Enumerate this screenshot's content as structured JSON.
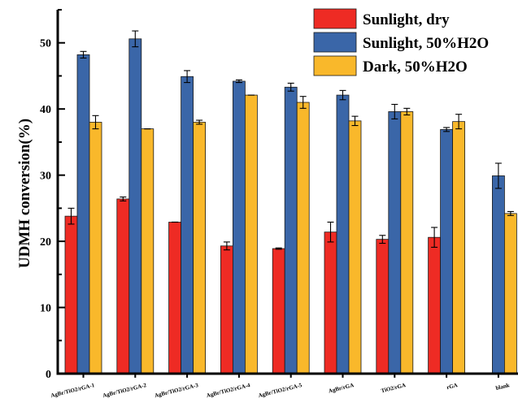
{
  "chart_data": {
    "type": "bar",
    "title": "",
    "xlabel": "",
    "ylabel": "UDMH conversion(%)",
    "ylim": [
      0,
      55
    ],
    "yticks": [
      0,
      10,
      20,
      30,
      40,
      50
    ],
    "grid": false,
    "legend_position": "top-right",
    "categories": [
      "AgBr/TiO2/rGA-1",
      "AgBr/TiO2/rGA-2",
      "AgBr/TiO2/rGA-3",
      "AgBr/TiO2/rGA-4",
      "AgBr/TiO2/rGA-5",
      "AgBr/rGA",
      "TiO2/rGA",
      "rGA",
      "blank"
    ],
    "series": [
      {
        "name": "Sunlight, dry",
        "color": "#ee2b24",
        "values": [
          23.8,
          26.4,
          22.9,
          19.3,
          18.9,
          21.4,
          20.3,
          20.6,
          null
        ],
        "errors": [
          1.2,
          0.3,
          0.0,
          0.6,
          0.1,
          1.5,
          0.6,
          1.5,
          null
        ]
      },
      {
        "name": "Sunlight, 50%H2O",
        "color": "#3a66a8",
        "values": [
          48.2,
          50.6,
          44.9,
          44.2,
          43.3,
          42.1,
          39.6,
          36.9,
          29.9
        ],
        "errors": [
          0.5,
          1.2,
          0.9,
          0.2,
          0.6,
          0.7,
          1.1,
          0.3,
          1.9
        ]
      },
      {
        "name": "Dark, 50%H2O",
        "color": "#f9b82b",
        "values": [
          38.0,
          37.0,
          38.0,
          42.1,
          41.0,
          38.2,
          39.6,
          38.1,
          24.2
        ],
        "errors": [
          1.0,
          0.0,
          0.3,
          0.0,
          0.9,
          0.7,
          0.5,
          1.1,
          0.3
        ]
      }
    ]
  }
}
